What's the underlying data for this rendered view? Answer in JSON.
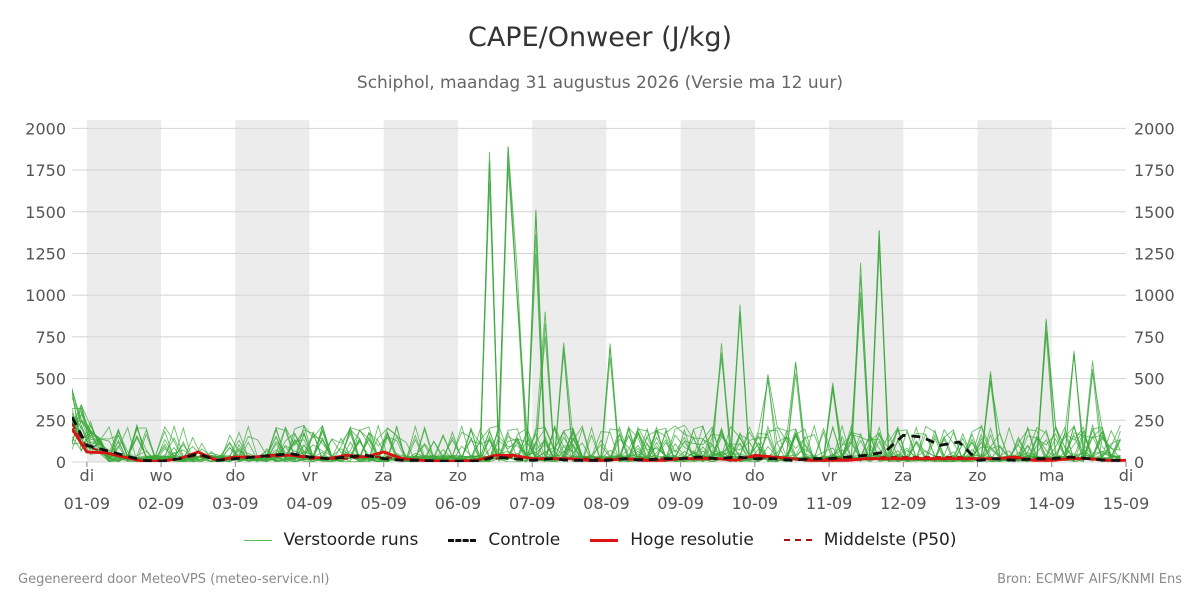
{
  "title": "CAPE/Onweer (J/kg)",
  "subtitle": "Schiphol, maandag 31 augustus 2026 (Versie ma 12 uur)",
  "footer_left": "Gegenereerd door MeteoVPS (meteo-service.nl)",
  "footer_right": "Bron: ECMWF AIFS/KNMI Ens",
  "legend": [
    {
      "label": "Verstoorde runs",
      "color": "#2ca02c",
      "style": "thin"
    },
    {
      "label": "Controle",
      "color": "#111111",
      "style": "dashed-bold"
    },
    {
      "label": "Hoge resolutie",
      "color": "#dd1111",
      "style": "bold"
    },
    {
      "label": "Middelste (P50)",
      "color": "#aa1111",
      "style": "dashed"
    }
  ],
  "chart_data": {
    "type": "line",
    "x_unit": "day",
    "x_range": [
      31.8,
      46.0
    ],
    "ylim": [
      0,
      2050
    ],
    "y_ticks": [
      0,
      250,
      500,
      750,
      1000,
      1250,
      1500,
      1750,
      2000
    ],
    "day_labels": [
      {
        "day": 32,
        "weekday": "di",
        "date": "01-09"
      },
      {
        "day": 33,
        "weekday": "wo",
        "date": "02-09"
      },
      {
        "day": 34,
        "weekday": "do",
        "date": "03-09"
      },
      {
        "day": 35,
        "weekday": "vr",
        "date": "04-09"
      },
      {
        "day": 36,
        "weekday": "za",
        "date": "05-09"
      },
      {
        "day": 37,
        "weekday": "zo",
        "date": "06-09"
      },
      {
        "day": 38,
        "weekday": "ma",
        "date": "07-09"
      },
      {
        "day": 39,
        "weekday": "di",
        "date": "08-09"
      },
      {
        "day": 40,
        "weekday": "wo",
        "date": "09-09"
      },
      {
        "day": 41,
        "weekday": "do",
        "date": "10-09"
      },
      {
        "day": 42,
        "weekday": "vr",
        "date": "11-09"
      },
      {
        "day": 43,
        "weekday": "za",
        "date": "12-09"
      },
      {
        "day": 44,
        "weekday": "zo",
        "date": "13-09"
      },
      {
        "day": 45,
        "weekday": "ma",
        "date": "14-09"
      },
      {
        "day": 46,
        "weekday": "di",
        "date": "15-09"
      }
    ],
    "night_bands": [
      [
        32,
        33
      ],
      [
        34,
        35
      ],
      [
        36,
        37
      ],
      [
        38,
        39
      ],
      [
        40,
        41
      ],
      [
        42,
        43
      ],
      [
        44,
        45
      ],
      [
        46,
        46.5
      ]
    ],
    "grid": true,
    "series": [
      {
        "name": "Controle",
        "color": "#111111",
        "points": [
          [
            31.8,
            270
          ],
          [
            32,
            100
          ],
          [
            32.25,
            70
          ],
          [
            32.5,
            40
          ],
          [
            32.75,
            10
          ],
          [
            33,
            5
          ],
          [
            33.25,
            20
          ],
          [
            33.5,
            50
          ],
          [
            33.75,
            10
          ],
          [
            34,
            20
          ],
          [
            34.25,
            30
          ],
          [
            34.5,
            40
          ],
          [
            34.75,
            50
          ],
          [
            35,
            30
          ],
          [
            35.25,
            20
          ],
          [
            35.5,
            30
          ],
          [
            35.75,
            40
          ],
          [
            36,
            20
          ],
          [
            36.25,
            10
          ],
          [
            36.5,
            10
          ],
          [
            36.75,
            5
          ],
          [
            37,
            5
          ],
          [
            37.25,
            5
          ],
          [
            37.5,
            30
          ],
          [
            37.75,
            20
          ],
          [
            38,
            10
          ],
          [
            38.25,
            20
          ],
          [
            38.5,
            10
          ],
          [
            38.75,
            10
          ],
          [
            39,
            10
          ],
          [
            39.25,
            20
          ],
          [
            39.5,
            10
          ],
          [
            39.75,
            20
          ],
          [
            40,
            20
          ],
          [
            40.25,
            30
          ],
          [
            40.5,
            20
          ],
          [
            40.75,
            30
          ],
          [
            41,
            20
          ],
          [
            41.25,
            20
          ],
          [
            41.5,
            10
          ],
          [
            41.75,
            20
          ],
          [
            42,
            20
          ],
          [
            42.25,
            30
          ],
          [
            42.5,
            40
          ],
          [
            42.75,
            60
          ],
          [
            43,
            160
          ],
          [
            43.25,
            150
          ],
          [
            43.5,
            100
          ],
          [
            43.75,
            120
          ],
          [
            44,
            10
          ],
          [
            44.25,
            20
          ],
          [
            44.5,
            10
          ],
          [
            44.75,
            20
          ],
          [
            45,
            20
          ],
          [
            45.25,
            30
          ],
          [
            45.5,
            20
          ],
          [
            45.75,
            10
          ],
          [
            46,
            10
          ]
        ]
      },
      {
        "name": "Hoge resolutie",
        "color": "#dd1111",
        "points": [
          [
            31.8,
            200
          ],
          [
            32,
            60
          ],
          [
            32.25,
            55
          ],
          [
            32.5,
            30
          ],
          [
            32.75,
            5
          ],
          [
            33,
            5
          ],
          [
            33.25,
            20
          ],
          [
            33.5,
            60
          ],
          [
            33.75,
            10
          ],
          [
            34,
            30
          ],
          [
            34.25,
            30
          ],
          [
            34.5,
            40
          ],
          [
            34.75,
            40
          ],
          [
            35,
            30
          ],
          [
            35.25,
            20
          ],
          [
            35.5,
            40
          ],
          [
            35.75,
            30
          ],
          [
            36,
            60
          ],
          [
            36.25,
            20
          ],
          [
            36.5,
            10
          ],
          [
            36.75,
            5
          ],
          [
            37,
            5
          ],
          [
            37.25,
            10
          ],
          [
            37.5,
            40
          ],
          [
            37.75,
            40
          ],
          [
            38,
            20
          ],
          [
            38.25,
            20
          ],
          [
            38.5,
            20
          ],
          [
            38.75,
            10
          ],
          [
            39,
            10
          ],
          [
            39.25,
            20
          ],
          [
            39.5,
            10
          ],
          [
            39.75,
            10
          ],
          [
            40,
            20
          ],
          [
            40.25,
            20
          ],
          [
            40.5,
            20
          ],
          [
            40.75,
            10
          ],
          [
            41,
            40
          ],
          [
            41.25,
            30
          ],
          [
            41.5,
            20
          ],
          [
            41.75,
            10
          ],
          [
            42,
            10
          ],
          [
            42.25,
            10
          ],
          [
            42.5,
            20
          ],
          [
            42.75,
            20
          ],
          [
            43,
            20
          ],
          [
            43.25,
            20
          ],
          [
            43.5,
            20
          ],
          [
            43.75,
            20
          ],
          [
            44,
            20
          ],
          [
            44.25,
            20
          ],
          [
            44.5,
            30
          ],
          [
            44.75,
            10
          ],
          [
            45,
            10
          ],
          [
            45.25,
            20
          ],
          [
            45.5,
            20
          ],
          [
            45.75,
            10
          ],
          [
            46,
            10
          ]
        ]
      },
      {
        "name": "Middelste (P50)",
        "color": "#aa1111",
        "points": [
          [
            31.8,
            230
          ],
          [
            32,
            90
          ],
          [
            32.25,
            60
          ],
          [
            32.5,
            30
          ],
          [
            32.75,
            10
          ],
          [
            33,
            10
          ],
          [
            33.25,
            20
          ],
          [
            33.5,
            40
          ],
          [
            33.75,
            10
          ],
          [
            34,
            20
          ],
          [
            34.25,
            30
          ],
          [
            34.5,
            30
          ],
          [
            34.75,
            40
          ],
          [
            35,
            20
          ],
          [
            35.25,
            20
          ],
          [
            35.5,
            20
          ],
          [
            35.75,
            30
          ],
          [
            36,
            30
          ],
          [
            36.25,
            20
          ],
          [
            36.5,
            10
          ],
          [
            36.75,
            10
          ],
          [
            37,
            5
          ],
          [
            37.25,
            10
          ],
          [
            37.5,
            20
          ],
          [
            37.75,
            30
          ],
          [
            38,
            20
          ],
          [
            38.25,
            20
          ],
          [
            38.5,
            20
          ],
          [
            38.75,
            20
          ],
          [
            39,
            20
          ],
          [
            39.25,
            20
          ],
          [
            39.5,
            20
          ],
          [
            39.75,
            20
          ],
          [
            40,
            20
          ],
          [
            40.25,
            30
          ],
          [
            40.5,
            20
          ],
          [
            40.75,
            20
          ],
          [
            41,
            30
          ],
          [
            41.25,
            20
          ],
          [
            41.5,
            20
          ],
          [
            41.75,
            20
          ],
          [
            42,
            20
          ],
          [
            42.25,
            20
          ],
          [
            42.5,
            20
          ],
          [
            42.75,
            30
          ],
          [
            43,
            30
          ],
          [
            43.25,
            30
          ],
          [
            43.5,
            30
          ],
          [
            43.75,
            30
          ],
          [
            44,
            20
          ],
          [
            44.25,
            20
          ],
          [
            44.5,
            20
          ],
          [
            44.75,
            20
          ],
          [
            45,
            20
          ],
          [
            45.25,
            20
          ],
          [
            45.5,
            20
          ],
          [
            45.75,
            10
          ],
          [
            46,
            10
          ]
        ]
      }
    ],
    "ensemble_members": 24
  }
}
